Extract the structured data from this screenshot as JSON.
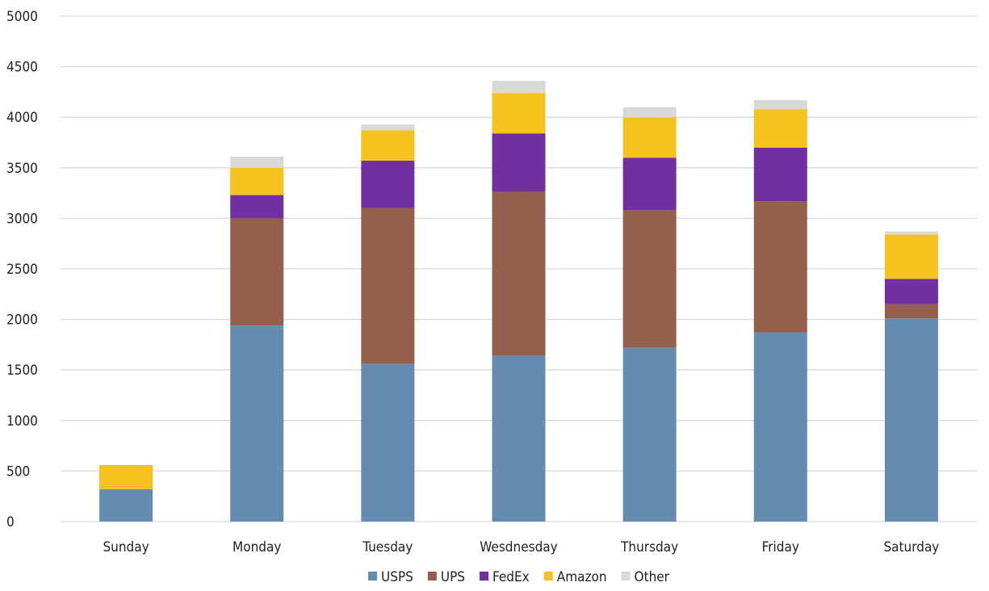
{
  "chart_data": {
    "type": "bar",
    "stacked": true,
    "title": "",
    "xlabel": "",
    "ylabel": "",
    "ylim": [
      0,
      5000
    ],
    "yticks": [
      0,
      500,
      1000,
      1500,
      2000,
      2500,
      3000,
      3500,
      4000,
      4500,
      5000
    ],
    "grid": true,
    "legend_position": "bottom",
    "categories": [
      "Sunday",
      "Monday",
      "Tuesday",
      "Wesdnesday",
      "Thursday",
      "Friday",
      "Saturday"
    ],
    "series": [
      {
        "name": "USPS",
        "color": "#658bb0",
        "values": [
          320,
          1940,
          1560,
          1640,
          1720,
          1870,
          2010
        ]
      },
      {
        "name": "UPS",
        "color": "#95604b",
        "values": [
          0,
          1060,
          1540,
          1620,
          1360,
          1300,
          140
        ]
      },
      {
        "name": "FedEx",
        "color": "#7030a0",
        "values": [
          0,
          230,
          470,
          580,
          520,
          530,
          250
        ]
      },
      {
        "name": "Amazon",
        "color": "#f6c220",
        "values": [
          240,
          270,
          300,
          400,
          400,
          380,
          440
        ]
      },
      {
        "name": "Other",
        "color": "#d9d9d9",
        "values": [
          0,
          110,
          60,
          120,
          100,
          90,
          30
        ]
      }
    ]
  }
}
